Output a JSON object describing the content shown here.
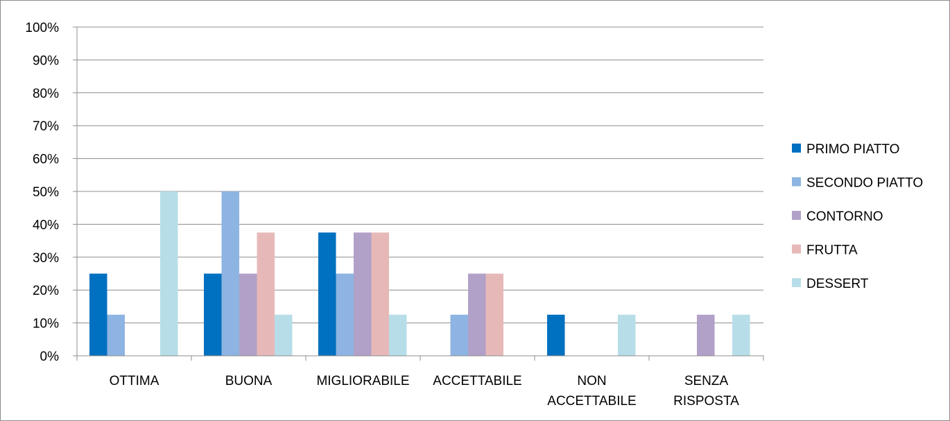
{
  "chart_data": {
    "type": "bar",
    "categories": [
      [
        "OTTIMA"
      ],
      [
        "BUONA"
      ],
      [
        "MIGLIORABILE"
      ],
      [
        "ACCETTABILE"
      ],
      [
        "NON",
        "ACCETTABILE"
      ],
      [
        "SENZA",
        "RISPOSTA"
      ]
    ],
    "series": [
      {
        "name": "PRIMO PIATTO",
        "color": "#0070C0",
        "values": [
          25,
          25,
          37.5,
          0,
          12.5,
          0
        ]
      },
      {
        "name": "SECONDO PIATTO",
        "color": "#8DB4E2",
        "values": [
          12.5,
          50,
          25,
          12.5,
          0,
          0
        ]
      },
      {
        "name": "CONTORNO",
        "color": "#B1A0C7",
        "values": [
          0,
          25,
          37.5,
          25,
          0,
          12.5
        ]
      },
      {
        "name": "FRUTTA",
        "color": "#E6B9B8",
        "values": [
          0,
          37.5,
          37.5,
          25,
          0,
          0
        ]
      },
      {
        "name": "DESSERT",
        "color": "#B7DEE8",
        "values": [
          50,
          12.5,
          12.5,
          0,
          12.5,
          12.5
        ]
      }
    ],
    "ylim": [
      0,
      100
    ],
    "ytick_step": 10,
    "ytick_suffix": "%",
    "grid": true,
    "legend": "right"
  }
}
